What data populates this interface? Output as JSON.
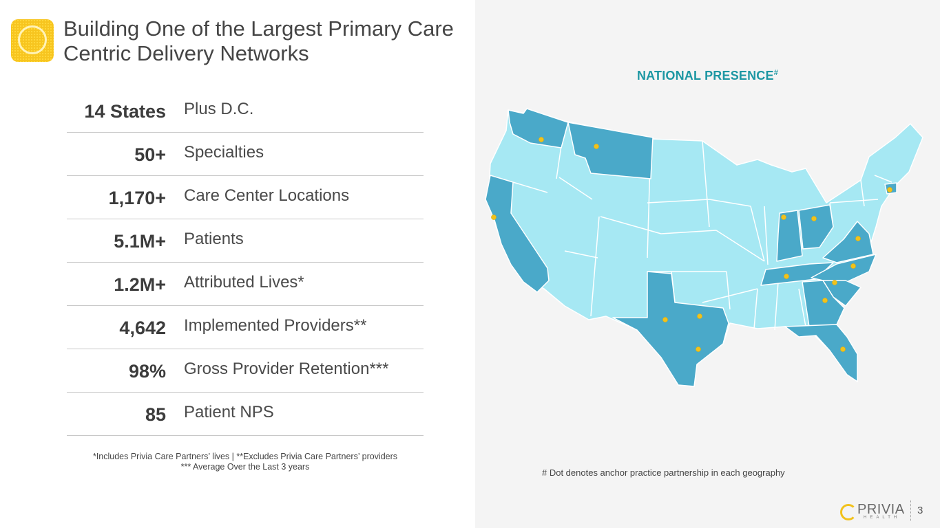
{
  "title": "Building One of the Largest Primary Care Centric Delivery Networks",
  "stats": [
    {
      "number": "14 States",
      "label": "Plus D.C."
    },
    {
      "number": "50+",
      "label": "Specialties"
    },
    {
      "number": "1,170+",
      "label": "Care Center Locations"
    },
    {
      "number": "5.1M+",
      "label": "Patients"
    },
    {
      "number": "1.2M+",
      "label": "Attributed Lives*"
    },
    {
      "number": "4,642",
      "label": "Implemented Providers**"
    },
    {
      "number": "98%",
      "label": "Gross Provider Retention***"
    },
    {
      "number": "85",
      "label": "Patient NPS"
    }
  ],
  "footnote_line1": "*Includes Privia Care Partners’ lives   |   **Excludes Privia Care Partners’ providers",
  "footnote_line2": "*** Average Over the Last 3 years",
  "map": {
    "title": "NATIONAL PRESENCE",
    "title_mark": "#",
    "note": "# Dot denotes anchor practice partnership in each geography",
    "colors": {
      "base": "#a6e8f3",
      "highlight": "#4aa9c9",
      "dot": "#f2c21b",
      "border": "#ffffff"
    }
  },
  "brand": {
    "name": "PRIVIA",
    "sub": "HEALTH"
  },
  "page_number": "3"
}
